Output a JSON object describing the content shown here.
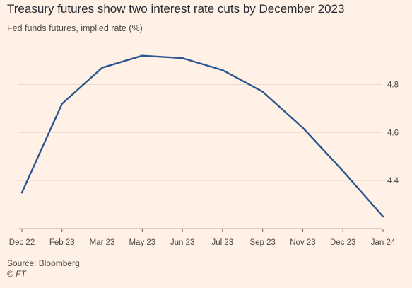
{
  "chart_data": {
    "type": "line",
    "title": "Treasury futures show two interest rate cuts by December 2023",
    "subtitle": "Fed funds futures, implied rate (%)",
    "xlabel": "",
    "ylabel": "",
    "categories": [
      "Dec 22",
      "Feb 23",
      "Mar 23",
      "May 23",
      "Jun 23",
      "Jul 23",
      "Sep 23",
      "Nov 23",
      "Dec 23",
      "Jan 24"
    ],
    "series": [
      {
        "values": [
          4.35,
          4.72,
          4.87,
          4.92,
          4.91,
          4.86,
          4.77,
          4.62,
          4.44,
          4.25
        ]
      }
    ],
    "y_ticks": [
      "4.4",
      "4.6",
      "4.8"
    ],
    "ylim": [
      4.2,
      4.99
    ],
    "grid": "horizontal",
    "y_axis_position": "right",
    "line_color": "#2b5690"
  },
  "footer": {
    "source": "Source: Bloomberg",
    "copyright": "© FT"
  }
}
